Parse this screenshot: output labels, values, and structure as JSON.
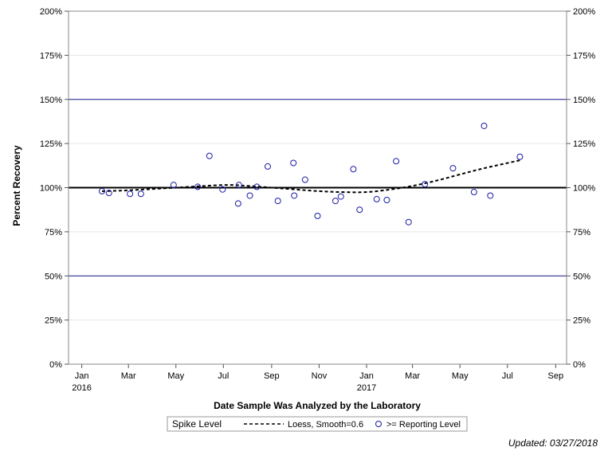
{
  "chart_data": {
    "type": "scatter",
    "xlabel": "Date Sample Was Analyzed by the Laboratory",
    "ylabel": "Percent Recovery",
    "xlim": [
      "2015-12-15",
      "2017-09-15"
    ],
    "ylim": [
      0,
      200
    ],
    "y_ticks": [
      0,
      25,
      50,
      75,
      100,
      125,
      150,
      175,
      200
    ],
    "y_tick_format": "%",
    "y_axis_mirrored_right": true,
    "x_ticks": [
      {
        "date": "2016-01-01",
        "label": "Jan",
        "year": "2016"
      },
      {
        "date": "2016-03-01",
        "label": "Mar",
        "year": ""
      },
      {
        "date": "2016-05-01",
        "label": "May",
        "year": ""
      },
      {
        "date": "2016-07-01",
        "label": "Jul",
        "year": ""
      },
      {
        "date": "2016-09-01",
        "label": "Sep",
        "year": ""
      },
      {
        "date": "2016-11-01",
        "label": "Nov",
        "year": ""
      },
      {
        "date": "2017-01-01",
        "label": "Jan",
        "year": "2017"
      },
      {
        "date": "2017-03-01",
        "label": "Mar",
        "year": ""
      },
      {
        "date": "2017-05-01",
        "label": "May",
        "year": ""
      },
      {
        "date": "2017-07-01",
        "label": "Jul",
        "year": ""
      },
      {
        "date": "2017-09-01",
        "label": "Sep",
        "year": ""
      }
    ],
    "grid": "horizontal",
    "reference_lines": [
      {
        "y": 50,
        "color": "#1a1a8c",
        "style": "thin"
      },
      {
        "y": 100,
        "color": "#000000",
        "style": "thick"
      },
      {
        "y": 150,
        "color": "#1a1a8c",
        "style": "thin"
      }
    ],
    "series": [
      {
        "name": ">= Reporting Level",
        "kind": "scatter",
        "marker": "open-circle",
        "color": "#1a1aa6",
        "points": [
          {
            "x": "2016-01-27",
            "y": 98
          },
          {
            "x": "2016-02-05",
            "y": 97
          },
          {
            "x": "2016-03-03",
            "y": 96.5
          },
          {
            "x": "2016-03-17",
            "y": 96.5
          },
          {
            "x": "2016-04-28",
            "y": 101.5
          },
          {
            "x": "2016-05-29",
            "y": 100.5
          },
          {
            "x": "2016-06-13",
            "y": 118
          },
          {
            "x": "2016-06-30",
            "y": 99
          },
          {
            "x": "2016-07-20",
            "y": 91
          },
          {
            "x": "2016-07-21",
            "y": 101.5
          },
          {
            "x": "2016-08-04",
            "y": 95.5
          },
          {
            "x": "2016-08-13",
            "y": 100.5
          },
          {
            "x": "2016-08-27",
            "y": 112
          },
          {
            "x": "2016-09-09",
            "y": 92.5
          },
          {
            "x": "2016-09-29",
            "y": 114
          },
          {
            "x": "2016-09-30",
            "y": 95.5
          },
          {
            "x": "2016-10-14",
            "y": 104.5
          },
          {
            "x": "2016-10-30",
            "y": 84
          },
          {
            "x": "2016-11-22",
            "y": 92.5
          },
          {
            "x": "2016-11-29",
            "y": 95
          },
          {
            "x": "2016-12-15",
            "y": 110.5
          },
          {
            "x": "2016-12-23",
            "y": 87.5
          },
          {
            "x": "2017-01-14",
            "y": 93.5
          },
          {
            "x": "2017-01-27",
            "y": 93
          },
          {
            "x": "2017-02-08",
            "y": 115
          },
          {
            "x": "2017-02-24",
            "y": 80.5
          },
          {
            "x": "2017-03-17",
            "y": 102
          },
          {
            "x": "2017-04-22",
            "y": 111
          },
          {
            "x": "2017-05-19",
            "y": 97.5
          },
          {
            "x": "2017-06-01",
            "y": 135
          },
          {
            "x": "2017-06-09",
            "y": 95.5
          },
          {
            "x": "2017-07-17",
            "y": 117.5
          }
        ]
      },
      {
        "name": "Loess, Smooth=0.6",
        "kind": "line",
        "style": "dashed",
        "color": "#000000",
        "points": [
          {
            "x": "2016-01-27",
            "y": 98
          },
          {
            "x": "2016-03-01",
            "y": 98.5
          },
          {
            "x": "2016-05-01",
            "y": 100
          },
          {
            "x": "2016-07-01",
            "y": 101.5
          },
          {
            "x": "2016-08-01",
            "y": 101
          },
          {
            "x": "2016-09-01",
            "y": 100
          },
          {
            "x": "2016-10-01",
            "y": 99
          },
          {
            "x": "2016-11-01",
            "y": 98
          },
          {
            "x": "2016-12-01",
            "y": 97.5
          },
          {
            "x": "2017-01-01",
            "y": 97.5
          },
          {
            "x": "2017-02-01",
            "y": 99
          },
          {
            "x": "2017-03-01",
            "y": 101
          },
          {
            "x": "2017-04-01",
            "y": 104
          },
          {
            "x": "2017-05-01",
            "y": 107.5
          },
          {
            "x": "2017-06-01",
            "y": 111
          },
          {
            "x": "2017-07-17",
            "y": 115.5
          }
        ]
      }
    ],
    "legend": {
      "position": "bottom",
      "title": "Spike Level",
      "entries": [
        {
          "label": "Loess, Smooth=0.6",
          "symbol": "dashed-line"
        },
        {
          "label": ">= Reporting Level",
          "symbol": "open-circle"
        }
      ]
    }
  },
  "footnote": "Updated: 03/27/2018"
}
